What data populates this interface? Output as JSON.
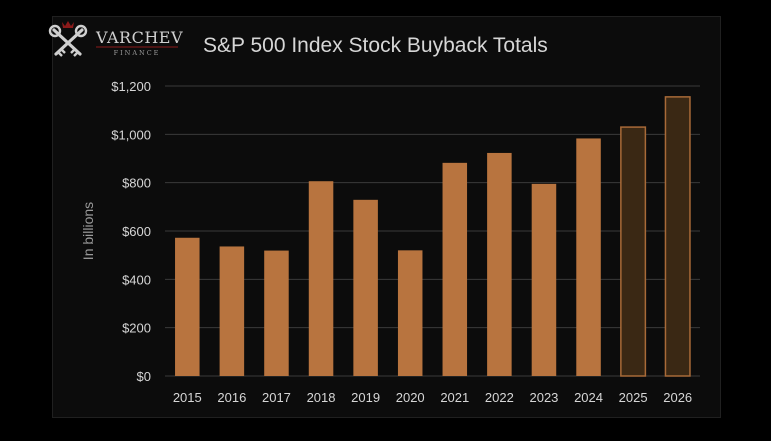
{
  "brand": {
    "name": "VARCHEV",
    "sub": "FINANCE",
    "icon": "crossed-keys-icon"
  },
  "colors": {
    "background": "#000000",
    "panel": "#0c0c0c",
    "bar_actual": "#b8743f",
    "bar_projected_fill": "#3a2814",
    "bar_projected_stroke": "#a86a38",
    "grid": "#3a3a3a",
    "text": "#d6d6d6",
    "muted": "#9a9a9a",
    "logo_red": "#8b1a1a"
  },
  "chart_data": {
    "type": "bar",
    "title": "S&P 500 Index Stock Buyback Totals",
    "ylabel": "In billions",
    "xlabel": "",
    "categories": [
      "2015",
      "2016",
      "2017",
      "2018",
      "2019",
      "2020",
      "2021",
      "2022",
      "2023",
      "2024",
      "2025",
      "2026"
    ],
    "values": [
      572,
      536,
      519,
      806,
      729,
      520,
      882,
      923,
      795,
      983,
      1030,
      1155
    ],
    "projected": [
      false,
      false,
      false,
      false,
      false,
      false,
      false,
      false,
      false,
      false,
      true,
      true
    ],
    "ylim": [
      0,
      1200
    ],
    "yticks": [
      0,
      200,
      400,
      600,
      800,
      1000,
      1200
    ],
    "ytick_labels": [
      "$0",
      "$200",
      "$400",
      "$600",
      "$800",
      "$1,000",
      "$1,200"
    ],
    "grid": true,
    "legend": "none"
  }
}
